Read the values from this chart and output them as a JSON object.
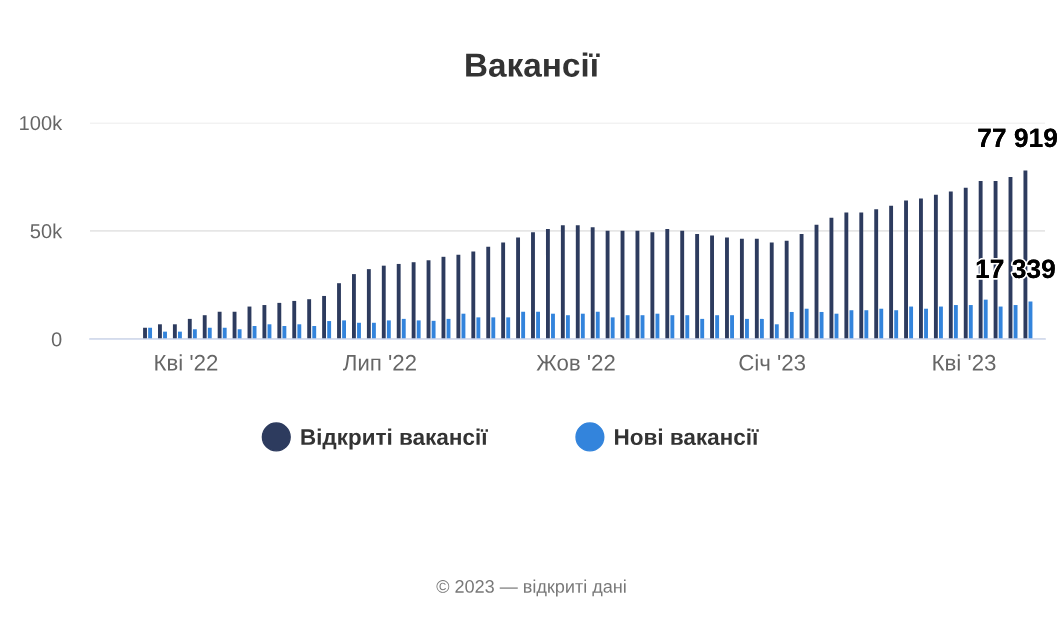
{
  "chart_data": {
    "type": "bar",
    "title": "Вакансії",
    "x": [
      "2022-03-14",
      "2022-03-21",
      "2022-03-28",
      "2022-04-04",
      "2022-04-11",
      "2022-04-18",
      "2022-04-25",
      "2022-05-02",
      "2022-05-09",
      "2022-05-16",
      "2022-05-23",
      "2022-05-30",
      "2022-06-06",
      "2022-06-13",
      "2022-06-20",
      "2022-06-27",
      "2022-07-04",
      "2022-07-11",
      "2022-07-18",
      "2022-07-25",
      "2022-08-01",
      "2022-08-08",
      "2022-08-15",
      "2022-08-22",
      "2022-08-29",
      "2022-09-05",
      "2022-09-12",
      "2022-09-19",
      "2022-09-26",
      "2022-10-03",
      "2022-10-10",
      "2022-10-17",
      "2022-10-24",
      "2022-10-31",
      "2022-11-07",
      "2022-11-14",
      "2022-11-21",
      "2022-11-28",
      "2022-12-05",
      "2022-12-12",
      "2022-12-19",
      "2022-12-26",
      "2023-01-02",
      "2023-01-09",
      "2023-01-16",
      "2023-01-23",
      "2023-01-30",
      "2023-02-06",
      "2023-02-13",
      "2023-02-20",
      "2023-02-27",
      "2023-03-06",
      "2023-03-13",
      "2023-03-20",
      "2023-03-27",
      "2023-04-03",
      "2023-04-10",
      "2023-04-17",
      "2023-04-24",
      "2023-05-01"
    ],
    "series": [
      {
        "name": "Відкриті вакансії",
        "color": "#2d3b5e",
        "values": [
          5200,
          6800,
          6800,
          9300,
          11000,
          12600,
          12600,
          15000,
          15700,
          16700,
          17600,
          18400,
          19900,
          25800,
          30000,
          32300,
          33900,
          34700,
          35500,
          36400,
          38000,
          38900,
          40400,
          42700,
          44600,
          46900,
          49400,
          50900,
          52600,
          52600,
          51700,
          50100,
          50100,
          50100,
          49400,
          50900,
          50100,
          48600,
          47800,
          46900,
          46300,
          46300,
          44600,
          45400,
          48600,
          52800,
          56000,
          58500,
          58500,
          60000,
          61600,
          64000,
          65000,
          66700,
          68200,
          69900,
          73100,
          73100,
          74900,
          77919
        ],
        "value_labels": [
          null,
          null,
          null,
          null,
          null,
          null,
          null,
          null,
          null,
          null,
          null,
          null,
          null,
          null,
          null,
          null,
          null,
          null,
          null,
          null,
          null,
          null,
          null,
          null,
          null,
          null,
          null,
          null,
          null,
          null,
          null,
          null,
          null,
          null,
          null,
          null,
          null,
          null,
          null,
          null,
          null,
          null,
          null,
          null,
          null,
          null,
          null,
          null,
          null,
          null,
          null,
          null,
          null,
          null,
          null,
          null,
          null,
          null,
          null,
          "77 919"
        ]
      },
      {
        "name": "Нові вакансії",
        "color": "#3384dc",
        "values": [
          5200,
          3400,
          3400,
          4500,
          5200,
          5200,
          4500,
          6000,
          6800,
          6000,
          6800,
          6000,
          8300,
          8600,
          7500,
          7500,
          8600,
          9300,
          8600,
          8400,
          9300,
          11700,
          10000,
          10000,
          10000,
          12600,
          12600,
          11700,
          11000,
          11700,
          12600,
          10000,
          11000,
          11000,
          11700,
          11000,
          11000,
          9300,
          11000,
          11000,
          9300,
          9300,
          6800,
          12500,
          14000,
          12500,
          11700,
          13300,
          13300,
          14000,
          13300,
          15000,
          14000,
          15000,
          15700,
          15700,
          18200,
          15000,
          15700,
          17339
        ],
        "value_labels": [
          null,
          null,
          null,
          null,
          null,
          null,
          null,
          null,
          null,
          null,
          null,
          null,
          null,
          null,
          null,
          null,
          null,
          null,
          null,
          null,
          null,
          null,
          null,
          null,
          null,
          null,
          null,
          null,
          null,
          null,
          null,
          null,
          null,
          null,
          null,
          null,
          null,
          null,
          null,
          null,
          null,
          null,
          null,
          null,
          null,
          null,
          null,
          null,
          null,
          null,
          null,
          null,
          null,
          null,
          null,
          null,
          null,
          null,
          null,
          "17 339"
        ]
      }
    ],
    "xlim": [
      "2022-02-15",
      "2023-05-09"
    ],
    "xticks": [
      {
        "value": "2022-04-01",
        "label": "Кві '22"
      },
      {
        "value": "2022-07-01",
        "label": "Лип '22"
      },
      {
        "value": "2022-10-01",
        "label": "Жов '22"
      },
      {
        "value": "2023-01-01",
        "label": "Січ '23"
      },
      {
        "value": "2023-04-01",
        "label": "Кві '23"
      }
    ],
    "ylim": [
      0,
      100000
    ],
    "yticks": [
      0,
      {
        "value": 50000,
        "label": "50k"
      },
      {
        "value": 100000,
        "label": "100k"
      }
    ],
    "grid": "y",
    "legend": "bottom",
    "annotations": [
      "© 2023 — відкриті дані"
    ]
  }
}
